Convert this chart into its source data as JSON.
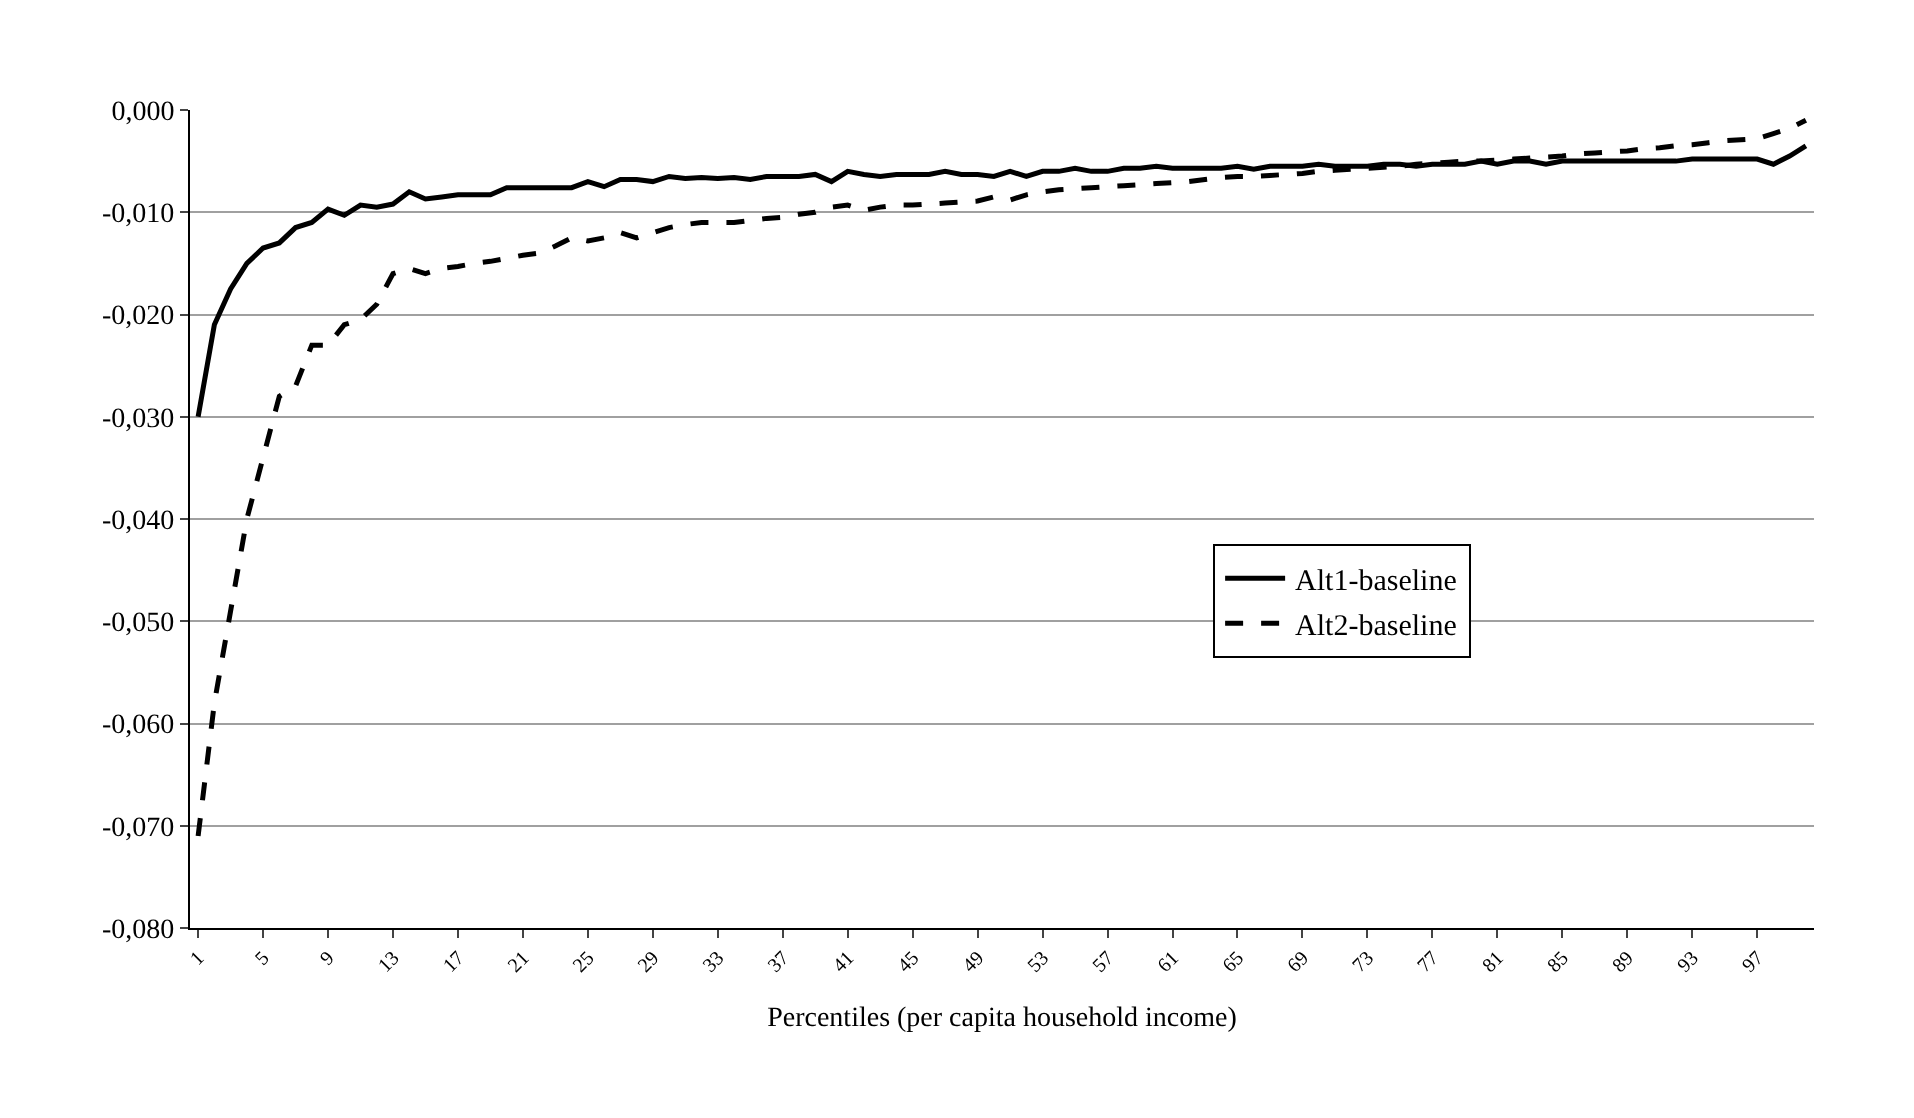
{
  "chart_data": {
    "type": "line",
    "xlabel": "Percentiles (per capita household income)",
    "categories": [
      "1",
      null,
      null,
      null,
      "5",
      null,
      null,
      null,
      "9",
      null,
      null,
      null,
      "13",
      null,
      null,
      null,
      "17",
      null,
      null,
      null,
      "21",
      null,
      null,
      null,
      "25",
      null,
      null,
      null,
      "29",
      null,
      null,
      null,
      "33",
      null,
      null,
      null,
      "37",
      null,
      null,
      null,
      "41",
      null,
      null,
      null,
      "45",
      null,
      null,
      null,
      "49",
      null,
      null,
      null,
      "53",
      null,
      null,
      null,
      "57",
      null,
      null,
      null,
      "61",
      null,
      null,
      null,
      "65",
      null,
      null,
      null,
      "69",
      null,
      null,
      null,
      "73",
      null,
      null,
      null,
      "77",
      null,
      null,
      null,
      "81",
      null,
      null,
      null,
      "85",
      null,
      null,
      null,
      "89",
      null,
      null,
      null,
      "93",
      null,
      null,
      null,
      "97",
      null,
      null,
      null
    ],
    "series": [
      {
        "name": "Alt1-baseline",
        "color": "#000000",
        "line_style": "solid",
        "values": [
          -0.03,
          -0.021,
          -0.0175,
          -0.015,
          -0.0135,
          -0.013,
          -0.0115,
          -0.011,
          -0.0097,
          -0.0103,
          -0.0093,
          -0.0095,
          -0.0092,
          -0.008,
          -0.0087,
          -0.0085,
          -0.0083,
          -0.0083,
          -0.0083,
          -0.0076,
          -0.0076,
          -0.0076,
          -0.0076,
          -0.0076,
          -0.007,
          -0.0075,
          -0.0068,
          -0.0068,
          -0.007,
          -0.0065,
          -0.0067,
          -0.0066,
          -0.0067,
          -0.0066,
          -0.0068,
          -0.0065,
          -0.0065,
          -0.0065,
          -0.0063,
          -0.007,
          -0.006,
          -0.0063,
          -0.0065,
          -0.0063,
          -0.0063,
          -0.0063,
          -0.006,
          -0.0063,
          -0.0063,
          -0.0065,
          -0.006,
          -0.0065,
          -0.006,
          -0.006,
          -0.0057,
          -0.006,
          -0.006,
          -0.0057,
          -0.0057,
          -0.0055,
          -0.0057,
          -0.0057,
          -0.0057,
          -0.0057,
          -0.0055,
          -0.0058,
          -0.0055,
          -0.0055,
          -0.0055,
          -0.0053,
          -0.0055,
          -0.0055,
          -0.0055,
          -0.0053,
          -0.0053,
          -0.0055,
          -0.0053,
          -0.0053,
          -0.0053,
          -0.005,
          -0.0053,
          -0.005,
          -0.005,
          -0.0053,
          -0.005,
          -0.005,
          -0.005,
          -0.005,
          -0.005,
          -0.005,
          -0.005,
          -0.005,
          -0.0048,
          -0.0048,
          -0.0048,
          -0.0048,
          -0.0048,
          -0.0053,
          -0.0045,
          -0.0035
        ]
      },
      {
        "name": "Alt2-baseline",
        "color": "#000000",
        "line_style": "dashed",
        "values": [
          -0.071,
          -0.058,
          -0.049,
          -0.04,
          -0.034,
          -0.028,
          -0.027,
          -0.023,
          -0.023,
          -0.021,
          -0.0205,
          -0.019,
          -0.016,
          -0.0155,
          -0.016,
          -0.0155,
          -0.0153,
          -0.015,
          -0.0148,
          -0.0145,
          -0.0142,
          -0.014,
          -0.0133,
          -0.0125,
          -0.0128,
          -0.0125,
          -0.012,
          -0.0125,
          -0.012,
          -0.0115,
          -0.0112,
          -0.011,
          -0.011,
          -0.011,
          -0.0108,
          -0.0106,
          -0.0105,
          -0.0102,
          -0.01,
          -0.0095,
          -0.0093,
          -0.0098,
          -0.0095,
          -0.0093,
          -0.0093,
          -0.0092,
          -0.0091,
          -0.009,
          -0.0089,
          -0.0085,
          -0.0088,
          -0.0083,
          -0.008,
          -0.0078,
          -0.0077,
          -0.0076,
          -0.0075,
          -0.0074,
          -0.0073,
          -0.0072,
          -0.0071,
          -0.007,
          -0.0068,
          -0.0066,
          -0.0065,
          -0.0065,
          -0.0064,
          -0.0063,
          -0.0062,
          -0.006,
          -0.0059,
          -0.0058,
          -0.0057,
          -0.0056,
          -0.0055,
          -0.0053,
          -0.0052,
          -0.0051,
          -0.005,
          -0.005,
          -0.0049,
          -0.0048,
          -0.0047,
          -0.0046,
          -0.0045,
          -0.0043,
          -0.0042,
          -0.0041,
          -0.004,
          -0.0038,
          -0.0037,
          -0.0035,
          -0.0034,
          -0.0032,
          -0.003,
          -0.0029,
          -0.0028,
          -0.0023,
          -0.0018,
          -0.001
        ]
      }
    ],
    "ylim": [
      -0.08,
      0
    ],
    "yticks": [
      {
        "value": 0,
        "label": "0,000"
      },
      {
        "value": -0.01,
        "label": "-0,010"
      },
      {
        "value": -0.02,
        "label": "-0,020"
      },
      {
        "value": -0.03,
        "label": "-0,030"
      },
      {
        "value": -0.04,
        "label": "-0,040"
      },
      {
        "value": -0.05,
        "label": "-0,050"
      },
      {
        "value": -0.06,
        "label": "-0,060"
      },
      {
        "value": -0.07,
        "label": "-0,070"
      },
      {
        "value": -0.08,
        "label": "-0,080"
      }
    ],
    "grid": "y",
    "legend": "right",
    "marker": "none"
  }
}
